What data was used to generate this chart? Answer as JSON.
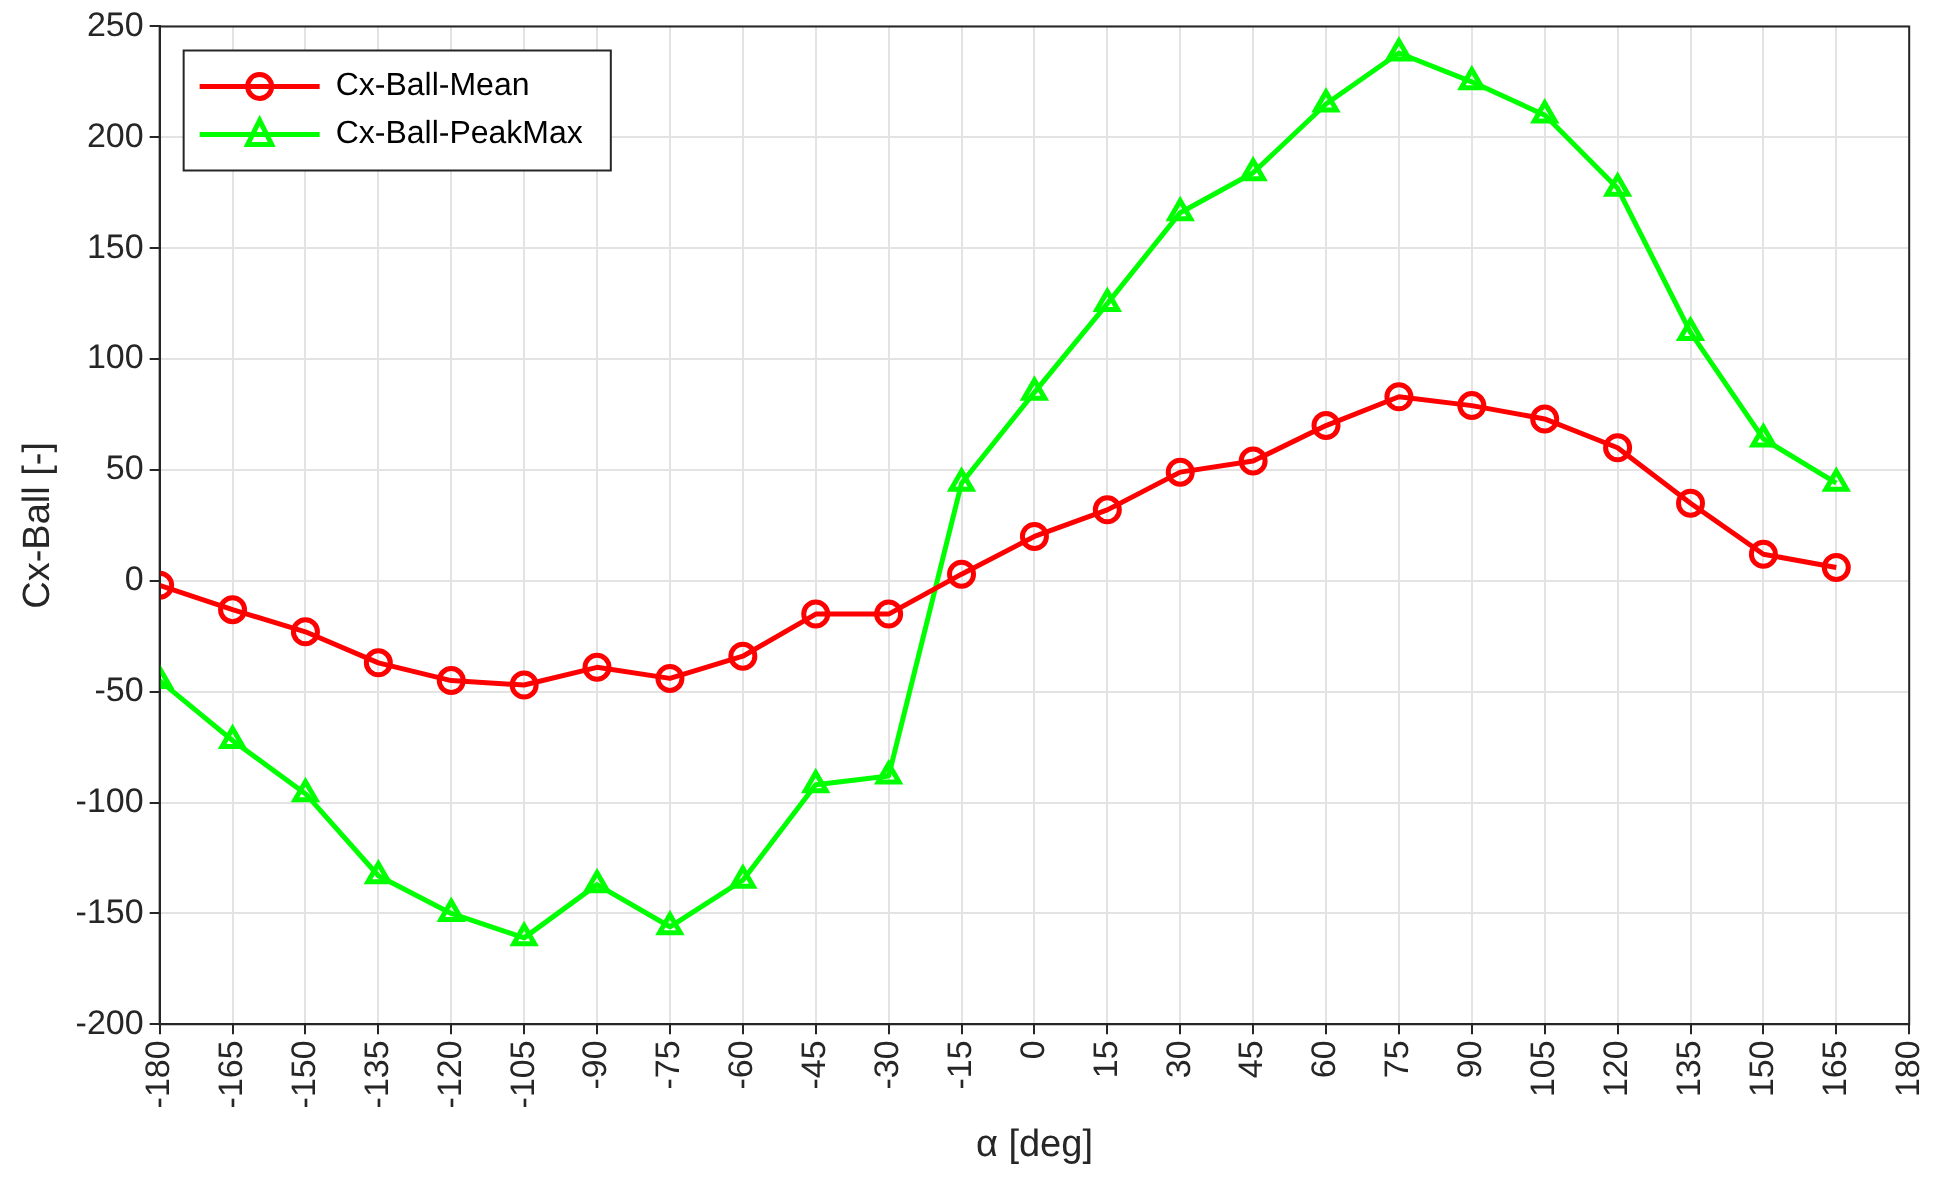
{
  "chart_data": {
    "type": "line",
    "xlabel": "α [deg]",
    "ylabel": "Cx-Ball [-]",
    "x": [
      -180,
      -165,
      -150,
      -135,
      -120,
      -105,
      -90,
      -75,
      -60,
      -45,
      -30,
      -15,
      0,
      15,
      30,
      45,
      60,
      75,
      90,
      105,
      120,
      135,
      150,
      165
    ],
    "xlim": [
      -180,
      180
    ],
    "xticks": [
      -180,
      -165,
      -150,
      -135,
      -120,
      -105,
      -90,
      -75,
      -60,
      -45,
      -30,
      -15,
      0,
      15,
      30,
      45,
      60,
      75,
      90,
      105,
      120,
      135,
      150,
      165,
      180
    ],
    "ylim": [
      -200,
      250
    ],
    "yticks": [
      -200,
      -150,
      -100,
      -50,
      0,
      50,
      100,
      150,
      200,
      250
    ],
    "grid": true,
    "legend": "top left",
    "line_style": "solid",
    "series": [
      {
        "name": "Cx-Ball-Mean",
        "color": "#ff0000",
        "marker": "circle",
        "values": [
          -2,
          -13,
          -23,
          -37,
          -45,
          -47,
          -39,
          -44,
          -34,
          -15,
          -15,
          3,
          20,
          32,
          49,
          54,
          70,
          83,
          79,
          73,
          60,
          35,
          12,
          6
        ]
      },
      {
        "name": "Cx-Ball-PeakMax",
        "color": "#00ff00",
        "marker": "triangle",
        "values": [
          -45,
          -72,
          -96,
          -133,
          -150,
          -161,
          -137,
          -156,
          -135,
          -92,
          -88,
          44,
          85,
          125,
          166,
          184,
          215,
          238,
          225,
          210,
          177,
          112,
          64,
          44
        ]
      }
    ]
  }
}
